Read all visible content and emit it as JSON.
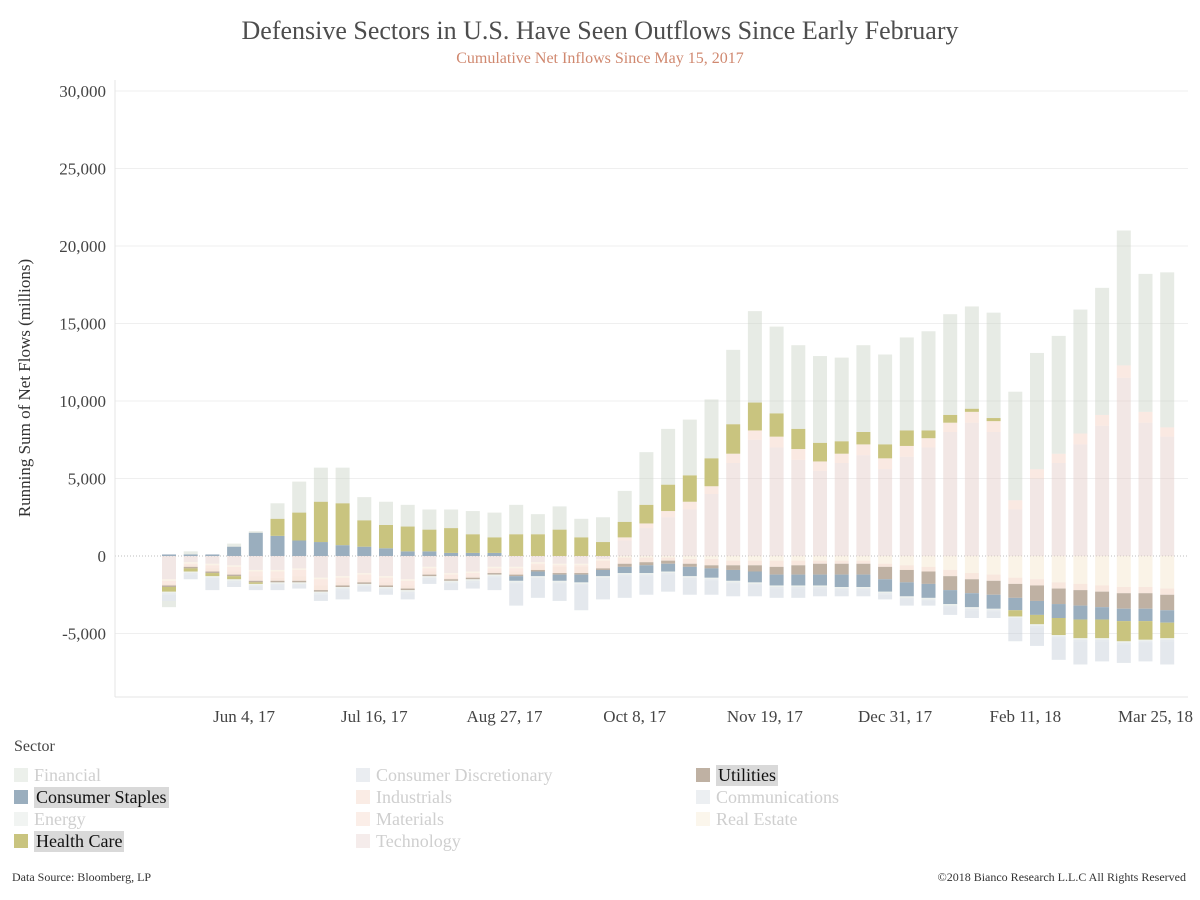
{
  "header": {
    "title": "Defensive Sectors in U.S. Have Seen Outflows Since Early February",
    "subtitle": "Cumulative Net Inflows Since May 15, 2017"
  },
  "footer": {
    "source": "Data Source: Bloomberg, LP",
    "copyright": "©2018 Bianco Research L.L.C  All Rights Reserved"
  },
  "legend": {
    "title": "Sector",
    "items": [
      {
        "name": "Financial",
        "color": "#c9d3c6",
        "active": false
      },
      {
        "name": "Consumer Discretionary",
        "color": "#c3ccd6",
        "active": false
      },
      {
        "name": "Utilities",
        "color": "#bfb1a3",
        "active": true
      },
      {
        "name": "Consumer Staples",
        "color": "#9aaebe",
        "active": true
      },
      {
        "name": "Industrials",
        "color": "#f0c9b5",
        "active": false
      },
      {
        "name": "Communications",
        "color": "#c8d0da",
        "active": false
      },
      {
        "name": "Energy",
        "color": "#d7e0da",
        "active": false
      },
      {
        "name": "Materials",
        "color": "#f4cfbe",
        "active": false
      },
      {
        "name": "Real Estate",
        "color": "#f4e4c9",
        "active": false
      },
      {
        "name": "Health Care",
        "color": "#c9c47f",
        "active": true
      },
      {
        "name": "Technology",
        "color": "#e3c9c5",
        "active": false
      }
    ]
  },
  "chart_data": {
    "type": "bar",
    "stacked": true,
    "ylabel": "Running Sum of Net Flows (millions)",
    "xlabel": "",
    "ylim": [
      -9000,
      30000
    ],
    "yticks": [
      -5000,
      0,
      5000,
      10000,
      15000,
      20000,
      25000,
      30000
    ],
    "ytick_labels": [
      "-5,000",
      "0",
      "5,000",
      "10,000",
      "15,000",
      "20,000",
      "25,000",
      "30,000"
    ],
    "xtick_labels": [
      {
        "index": 3,
        "label": "Jun 4, 17"
      },
      {
        "index": 9,
        "label": "Jul 16, 17"
      },
      {
        "index": 15,
        "label": "Aug 27, 17"
      },
      {
        "index": 21,
        "label": "Oct 8, 17"
      },
      {
        "index": 27,
        "label": "Nov 19, 17"
      },
      {
        "index": 33,
        "label": "Dec 31, 17"
      },
      {
        "index": 39,
        "label": "Feb 11, 18"
      },
      {
        "index": 45,
        "label": "Mar 25, 18"
      }
    ],
    "grid": true,
    "legend_position": "bottom",
    "series": [
      {
        "name": "Technology",
        "values": [
          -1500,
          -400,
          -500,
          -600,
          -900,
          -900,
          -800,
          -1400,
          -1300,
          -1100,
          -1300,
          -1500,
          -700,
          -1100,
          -1000,
          -700,
          -700,
          -400,
          -500,
          -500,
          -200,
          1000,
          1800,
          2500,
          3000,
          4000,
          6000,
          7500,
          7000,
          6200,
          5500,
          6000,
          6500,
          5600,
          6400,
          7000,
          8000,
          8600,
          8000,
          3000,
          5000,
          6000,
          7200,
          8400,
          11500,
          8600,
          7700
        ]
      },
      {
        "name": "Real Estate",
        "values": [
          -100,
          -100,
          -100,
          -100,
          -100,
          -100,
          -100,
          -100,
          -100,
          -100,
          -100,
          -100,
          -100,
          -100,
          -100,
          -100,
          -100,
          -100,
          -100,
          -100,
          -100,
          -100,
          -100,
          -100,
          -200,
          -200,
          -300,
          -300,
          -300,
          -300,
          -300,
          -300,
          -300,
          -500,
          -600,
          -700,
          -900,
          -1100,
          -1200,
          -1400,
          -1500,
          -1700,
          -1800,
          -1900,
          -2000,
          -2000,
          -2100
        ]
      },
      {
        "name": "Materials",
        "values": [
          -200,
          -100,
          -200,
          -300,
          -300,
          -400,
          -400,
          -400,
          -300,
          -300,
          -300,
          -300,
          -200,
          -200,
          -200,
          -200,
          -200,
          -100,
          -100,
          -100,
          0,
          200,
          300,
          400,
          500,
          500,
          600,
          600,
          700,
          700,
          600,
          600,
          700,
          700,
          700,
          600,
          600,
          700,
          700,
          600,
          600,
          600,
          700,
          700,
          800,
          700,
          600
        ]
      },
      {
        "name": "Industrials",
        "values": [
          -100,
          -100,
          -200,
          -200,
          -300,
          -200,
          -300,
          -300,
          -200,
          -200,
          -200,
          -200,
          -200,
          -100,
          -100,
          -100,
          -200,
          -300,
          -400,
          -400,
          -500,
          -400,
          -300,
          -200,
          -300,
          -400,
          -300,
          -300,
          -400,
          -300,
          -200,
          -200,
          -200,
          -200,
          -300,
          -300,
          -400,
          -400,
          -400,
          -400,
          -400,
          -400,
          -400,
          -400,
          -400,
          -400,
          -400
        ]
      },
      {
        "name": "Utilities",
        "values": [
          -100,
          -100,
          -100,
          -100,
          -100,
          -100,
          -100,
          -100,
          -100,
          -100,
          -100,
          -100,
          -100,
          -100,
          -100,
          -100,
          -100,
          -100,
          -100,
          -100,
          -100,
          -200,
          -200,
          -200,
          -200,
          -200,
          -300,
          -400,
          -500,
          -600,
          -700,
          -700,
          -700,
          -800,
          -800,
          -800,
          -900,
          -900,
          -900,
          -900,
          -1000,
          -1000,
          -1000,
          -1000,
          -1000,
          -1000,
          -1000
        ]
      },
      {
        "name": "Consumer Staples",
        "values": [
          100,
          100,
          100,
          600,
          1500,
          1300,
          1000,
          900,
          700,
          600,
          500,
          300,
          300,
          200,
          200,
          200,
          -300,
          -300,
          -400,
          -500,
          -400,
          -400,
          -500,
          -500,
          -600,
          -600,
          -700,
          -700,
          -700,
          -700,
          -700,
          -800,
          -800,
          -800,
          -900,
          -900,
          -900,
          -900,
          -900,
          -800,
          -900,
          -900,
          -900,
          -800,
          -800,
          -800,
          -800
        ]
      },
      {
        "name": "Health Care",
        "values": [
          -300,
          -200,
          -200,
          -200,
          -100,
          1100,
          1800,
          2600,
          2700,
          1700,
          1500,
          1600,
          1400,
          1600,
          1200,
          1000,
          1400,
          1400,
          1700,
          1200,
          900,
          1000,
          1200,
          1700,
          1700,
          1800,
          1900,
          1800,
          1500,
          1300,
          1200,
          800,
          800,
          900,
          1000,
          500,
          500,
          200,
          200,
          -400,
          -600,
          -1100,
          -1200,
          -1200,
          -1300,
          -1200,
          -1000
        ]
      },
      {
        "name": "Energy",
        "values": [
          -100,
          -100,
          -100,
          -100,
          -100,
          -100,
          -100,
          -100,
          -100,
          -100,
          -100,
          -100,
          -100,
          -100,
          -100,
          -100,
          -100,
          -100,
          -100,
          -100,
          -100,
          -100,
          -100,
          -100,
          -100,
          -100,
          -100,
          -100,
          -100,
          -100,
          -100,
          -100,
          -100,
          -100,
          -100,
          -100,
          -100,
          -100,
          -100,
          -100,
          -100,
          -100,
          -100,
          -100,
          -100,
          -100,
          -100
        ]
      },
      {
        "name": "Communications",
        "values": [
          -100,
          -100,
          -100,
          -100,
          -100,
          -100,
          -100,
          -100,
          -100,
          -100,
          -100,
          -100,
          -100,
          -100,
          -100,
          -100,
          -100,
          -100,
          -100,
          -100,
          -100,
          -100,
          -100,
          -100,
          -100,
          -100,
          -100,
          -100,
          -100,
          -100,
          -100,
          -100,
          -100,
          -100,
          -100,
          -100,
          -100,
          -100,
          -100,
          -100,
          -100,
          -100,
          -100,
          -100,
          -100,
          -100,
          -100
        ]
      },
      {
        "name": "Consumer Discretionary",
        "values": [
          -400,
          -300,
          -700,
          -300,
          -200,
          -300,
          -200,
          -400,
          -600,
          -300,
          -300,
          -400,
          -300,
          -400,
          -400,
          -800,
          -1400,
          -1200,
          -1100,
          -1600,
          -1300,
          -1400,
          -1200,
          -1100,
          -1000,
          -900,
          -800,
          -700,
          -600,
          -600,
          -500,
          -400,
          -400,
          -300,
          -400,
          -300,
          -500,
          -500,
          -400,
          -1400,
          -1200,
          -1400,
          -1500,
          -1300,
          -1200,
          -1200,
          -1500
        ]
      },
      {
        "name": "Financial",
        "values": [
          -400,
          200,
          0,
          200,
          100,
          1000,
          2000,
          2200,
          2300,
          1500,
          1500,
          1400,
          1300,
          1200,
          1500,
          1600,
          1900,
          1300,
          1500,
          1200,
          1600,
          2000,
          3400,
          3600,
          3600,
          3800,
          4800,
          5900,
          5600,
          5400,
          5600,
          5400,
          5600,
          5800,
          6000,
          6400,
          6500,
          6600,
          6800,
          7000,
          7500,
          7600,
          8000,
          8200,
          8700,
          8900,
          10000
        ]
      }
    ]
  }
}
